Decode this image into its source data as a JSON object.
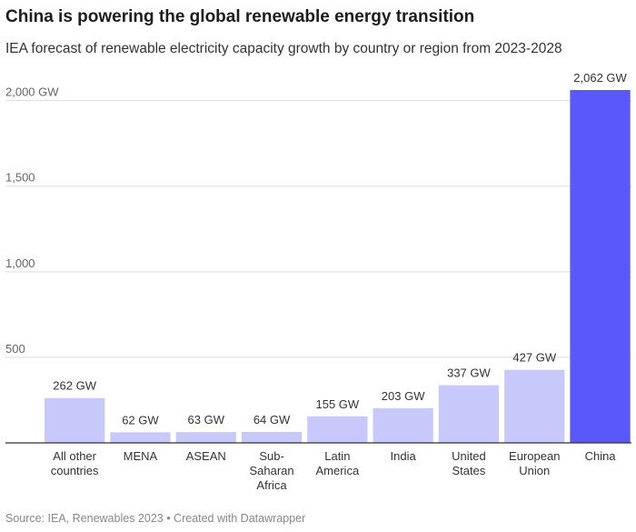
{
  "title": "China is powering the global renewable energy transition",
  "subtitle": "IEA forecast of renewable electricity capacity growth by country or region from 2023-2028",
  "footer": "Source: IEA, Renewables 2023 • Created with Datawrapper",
  "colors": {
    "bar": "#c7c9fb",
    "highlight": "#5858fb",
    "grid": "#dddddd",
    "axis": "#333333"
  },
  "chart_data": {
    "type": "bar",
    "title": "China is powering the global renewable energy transition",
    "xlabel": "",
    "ylabel": "",
    "ylim": [
      0,
      2062
    ],
    "yticks": [
      500,
      1000,
      1500,
      2000
    ],
    "ytick_labels": [
      "500",
      "1,000",
      "1,500",
      "2,000 GW"
    ],
    "categories": [
      [
        "All other",
        "countries"
      ],
      [
        "MENA"
      ],
      [
        "ASEAN"
      ],
      [
        "Sub-",
        "Saharan",
        "Africa"
      ],
      [
        "Latin",
        "America"
      ],
      [
        "India"
      ],
      [
        "United",
        "States"
      ],
      [
        "European",
        "Union"
      ],
      [
        "China"
      ]
    ],
    "values": [
      262,
      62,
      63,
      64,
      155,
      203,
      337,
      427,
      2062
    ],
    "value_labels": [
      "262 GW",
      "62 GW",
      "63 GW",
      "64 GW",
      "155 GW",
      "203 GW",
      "337 GW",
      "427 GW",
      "2,062 GW"
    ],
    "highlight_index": 8
  }
}
